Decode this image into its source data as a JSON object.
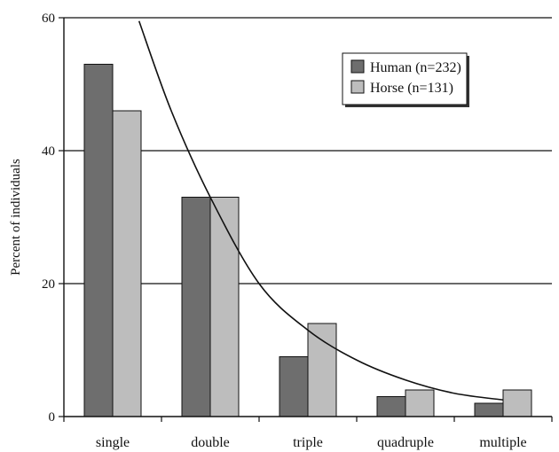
{
  "chart_data": {
    "type": "bar",
    "title": "",
    "xlabel": "",
    "ylabel": "Percent of individuals",
    "ylim": [
      0,
      60
    ],
    "yticks": [
      0,
      20,
      40,
      60
    ],
    "grid": true,
    "legend_position": "top-right",
    "categories": [
      "single",
      "double",
      "triple",
      "quadruple",
      "multiple"
    ],
    "series": [
      {
        "name": "Human (n=232)",
        "color": "#6e6e6e",
        "values": [
          53,
          33,
          9,
          3,
          2
        ]
      },
      {
        "name": "Horse (n=131)",
        "color": "#bdbdbd",
        "values": [
          46,
          33,
          14,
          4,
          4
        ]
      }
    ],
    "trendline": {
      "type": "exponential",
      "points": [
        {
          "x": 0.27,
          "y": 59.5
        },
        {
          "x": 0.6,
          "y": 46
        },
        {
          "x": 1.0,
          "y": 33
        },
        {
          "x": 1.5,
          "y": 20
        },
        {
          "x": 2.0,
          "y": 13
        },
        {
          "x": 2.5,
          "y": 8.5
        },
        {
          "x": 3.0,
          "y": 5.5
        },
        {
          "x": 3.5,
          "y": 3.5
        },
        {
          "x": 4.0,
          "y": 2.5
        }
      ]
    }
  }
}
